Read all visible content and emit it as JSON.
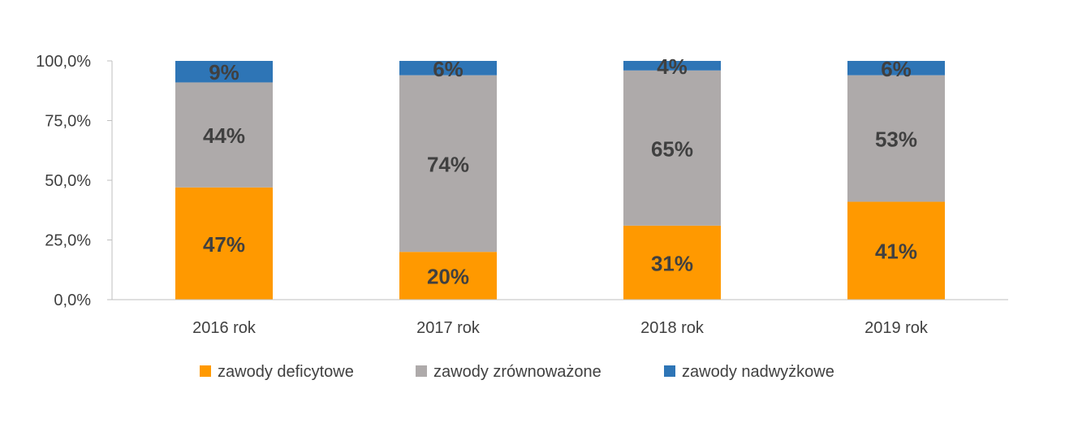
{
  "chart_data": {
    "type": "bar",
    "stacked": true,
    "categories": [
      "2016 rok",
      "2017 rok",
      "2018 rok",
      "2019 rok"
    ],
    "series": [
      {
        "name": "zawody deficytowe",
        "color": "#FF9900",
        "values": [
          47,
          20,
          31,
          41
        ],
        "labels": [
          "47%",
          "20%",
          "31%",
          "41%"
        ]
      },
      {
        "name": "zawody zrównoważone",
        "color": "#AEAAAA",
        "values": [
          44,
          74,
          65,
          53
        ],
        "labels": [
          "44%",
          "74%",
          "65%",
          "53%"
        ]
      },
      {
        "name": "zawody nadwyżkowe",
        "color": "#2E75B6",
        "values": [
          9,
          6,
          4,
          6
        ],
        "labels": [
          "9%",
          "6%",
          "4%",
          "6%"
        ]
      }
    ],
    "y_ticks": [
      "0,0%",
      "25,0%",
      "50,0%",
      "75,0%",
      "100,0%"
    ],
    "ylim": [
      0,
      100
    ],
    "grid": false,
    "legend": "bottom"
  }
}
